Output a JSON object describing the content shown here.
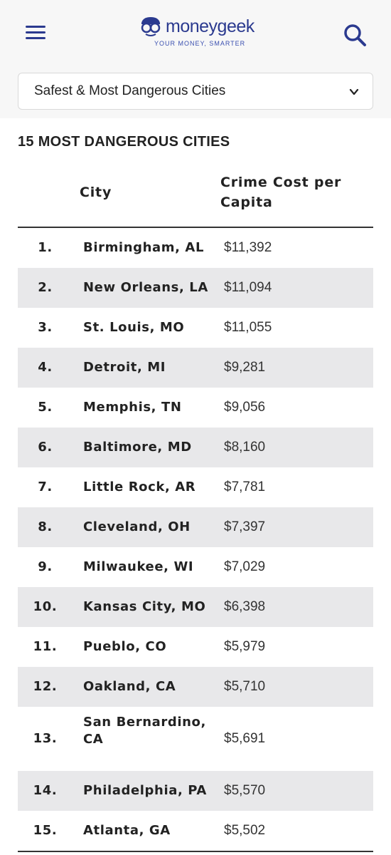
{
  "header": {
    "logo_text": "moneygeek",
    "tagline": "YOUR MONEY, SMARTER",
    "colors": {
      "brand": "#2b3a8f"
    }
  },
  "dropdown": {
    "selected": "Safest & Most Dangerous Cities"
  },
  "section": {
    "title": "15 MOST DANGEROUS CITIES"
  },
  "table": {
    "headers": {
      "city": "City",
      "cost": "Crime Cost per Capita"
    },
    "rows": [
      {
        "rank": "1.",
        "city": "Birmingham, AL",
        "cost": "$11,392"
      },
      {
        "rank": "2.",
        "city": "New Orleans, LA",
        "cost": "$11,094"
      },
      {
        "rank": "3.",
        "city": "St. Louis, MO",
        "cost": "$11,055"
      },
      {
        "rank": "4.",
        "city": "Detroit, MI",
        "cost": "$9,281"
      },
      {
        "rank": "5.",
        "city": "Memphis, TN",
        "cost": "$9,056"
      },
      {
        "rank": "6.",
        "city": "Baltimore, MD",
        "cost": "$8,160"
      },
      {
        "rank": "7.",
        "city": "Little Rock, AR",
        "cost": "$7,781"
      },
      {
        "rank": "8.",
        "city": "Cleveland, OH",
        "cost": "$7,397"
      },
      {
        "rank": "9.",
        "city": "Milwaukee, WI",
        "cost": "$7,029"
      },
      {
        "rank": "10.",
        "city": "Kansas City, MO",
        "cost": "$6,398"
      },
      {
        "rank": "11.",
        "city": "Pueblo, CO",
        "cost": "$5,979"
      },
      {
        "rank": "12.",
        "city": "Oakland, CA",
        "cost": "$5,710"
      },
      {
        "rank": "13.",
        "city": "San Bernardino, CA",
        "cost": "$5,691"
      },
      {
        "rank": "14.",
        "city": "Philadelphia, PA",
        "cost": "$5,570"
      },
      {
        "rank": "15.",
        "city": "Atlanta, GA",
        "cost": "$5,502"
      }
    ]
  }
}
